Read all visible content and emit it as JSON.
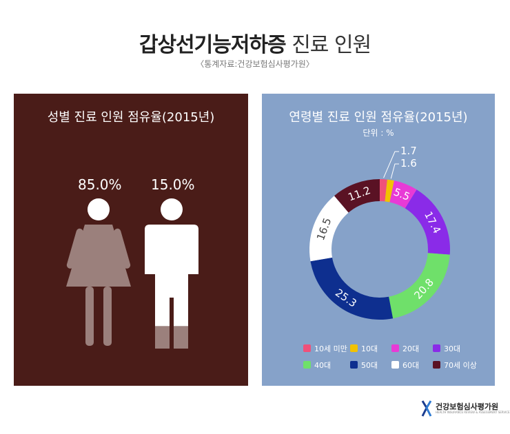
{
  "header": {
    "title_bold": "갑상선기능저하증",
    "title_light": "진료 인원",
    "source": "〈통계자료:건강보험심사평가원〉"
  },
  "chart_data": [
    {
      "type": "pictogram",
      "title": "성별 진료 인원 점유율(2015년)",
      "categories": [
        "여성",
        "남성"
      ],
      "values": [
        85.0,
        15.0
      ],
      "value_labels": [
        "85.0%",
        "15.0%"
      ],
      "colors": {
        "female": "#9b807c",
        "male": "#ffffff",
        "fill_accent": "#9b807c"
      }
    },
    {
      "type": "pie",
      "style": "donut",
      "title": "연령별 진료 인원 점유율(2015년)",
      "unit": "단위 : %",
      "categories": [
        "10세 미만",
        "10대",
        "20대",
        "30대",
        "40대",
        "50대",
        "60대",
        "70세 이상"
      ],
      "values": [
        1.7,
        1.6,
        5.5,
        17.4,
        20.8,
        25.3,
        16.5,
        11.2
      ],
      "colors": [
        "#f0507a",
        "#f2c200",
        "#e83ad6",
        "#8a2be8",
        "#6fe06a",
        "#0e2f8f",
        "#ffffff",
        "#5a1224"
      ],
      "label_colors": [
        "#ffffff",
        "#ffffff",
        "#ffffff",
        "#ffffff",
        "#ffffff",
        "#ffffff",
        "#444444",
        "#ffffff"
      ],
      "legend_position": "bottom"
    }
  ],
  "brand": {
    "name": "건강보험심사평가원",
    "sub": "HEALTH INSURANCE REVIEW & ASSESSMENT SERVICE"
  }
}
